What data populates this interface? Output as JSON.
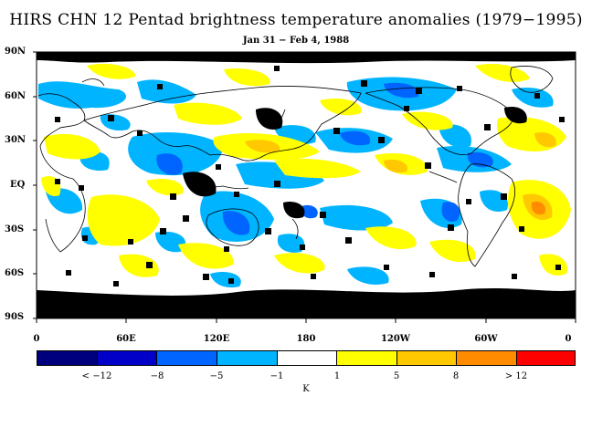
{
  "title": "HIRS CHN 12 Pentad brightness temperature anomalies (1979−1995)",
  "subtitle": "Jan 31 − Feb 4, 1988",
  "lat_labels": [
    "90N",
    "60N",
    "30N",
    "EQ",
    "30S",
    "60S",
    "90S"
  ],
  "lon_labels": [
    "0",
    "60E",
    "120E",
    "180",
    "120W",
    "60W",
    "0"
  ],
  "colorbar": {
    "unit": "K",
    "colors": [
      "#00007f",
      "#0000c8",
      "#0064ff",
      "#00b4ff",
      "#ffffff",
      "#ffff00",
      "#ffc800",
      "#ff8c00",
      "#ff0000"
    ],
    "labels": [
      "< −12",
      "−8",
      "−5",
      "−1",
      "1",
      "5",
      "8",
      "> 12"
    ]
  },
  "colors": {
    "missing": "#000000",
    "coastline": "#000000"
  }
}
